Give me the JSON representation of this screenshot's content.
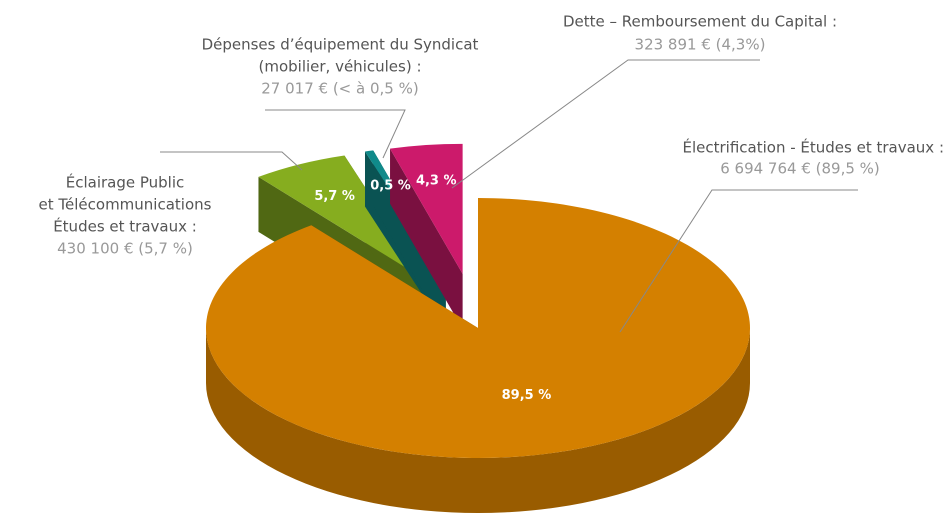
{
  "chart_data": {
    "type": "pie",
    "categories": [
      "Électrification - Études et travaux :",
      "Éclairage Public et Télécommunications Études et travaux :",
      "Dépenses d’équipement du Syndicat (mobilier, véhicules) :",
      "Dette – Remboursement du Capital :"
    ],
    "values": [
      89.5,
      5.7,
      0.5,
      4.3
    ],
    "value_labels": [
      "89,5 %",
      "5,7 %",
      "0,5 %",
      "4,3 %"
    ],
    "colors": [
      "#d48000",
      "#86ad1f",
      "#108a8a",
      "#cc1a6b"
    ],
    "exploded": [
      false,
      true,
      true,
      true
    ],
    "annotations": [
      {
        "lines": [
          "Électrification - Études et travaux :"
        ],
        "detail": "6 694 764 € (89,5 %)"
      },
      {
        "lines": [
          "Éclairage Public",
          "et Télécommunications",
          "Études et travaux :"
        ],
        "detail": "430 100 € (5,7 %)"
      },
      {
        "lines": [
          "Dépenses d’équipement du Syndicat",
          "(mobilier, véhicules) :"
        ],
        "detail": "27 017 € (< à 0,5 %)"
      },
      {
        "lines": [
          "Dette – Remboursement du Capital :"
        ],
        "detail": "323 891 € (4,3%)"
      }
    ]
  }
}
